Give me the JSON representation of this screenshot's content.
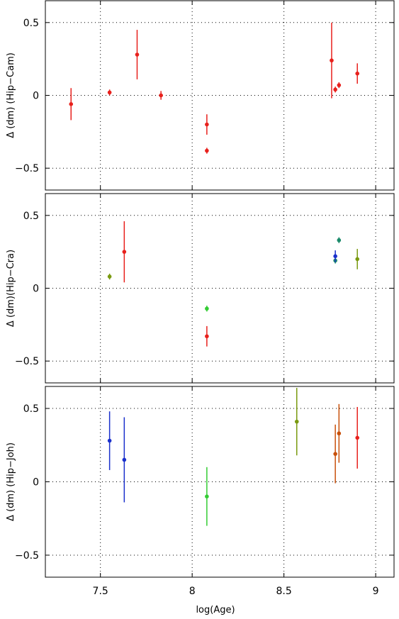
{
  "chart_data": [
    {
      "type": "scatter",
      "ylabel": "Δ (dm) (Hip−Cam)",
      "xlim": [
        7.2,
        9.1
      ],
      "ylim": [
        -0.65,
        0.65
      ],
      "grid": true,
      "xticks": [
        7.5,
        8,
        8.5,
        9
      ],
      "xtick_labels": [],
      "yticks": [
        0.5,
        0,
        -0.5
      ],
      "ytick_labels": [
        "0.5",
        "0",
        "−0.5"
      ],
      "points": [
        {
          "x": 7.34,
          "y": -0.06,
          "err": 0.11,
          "color": "#e8201c"
        },
        {
          "x": 7.55,
          "y": 0.02,
          "err": 0.02,
          "color": "#e8201c"
        },
        {
          "x": 7.7,
          "y": 0.28,
          "err": 0.17,
          "color": "#e8201c"
        },
        {
          "x": 7.83,
          "y": 0.0,
          "err": 0.03,
          "color": "#e8201c"
        },
        {
          "x": 8.08,
          "y": -0.2,
          "err": 0.07,
          "color": "#e8201c"
        },
        {
          "x": 8.08,
          "y": -0.38,
          "err": 0.02,
          "color": "#e8201c"
        },
        {
          "x": 8.76,
          "y": 0.24,
          "err": 0.26,
          "color": "#e8201c"
        },
        {
          "x": 8.78,
          "y": 0.04,
          "err": 0.02,
          "color": "#e8201c"
        },
        {
          "x": 8.8,
          "y": 0.07,
          "err": 0.02,
          "color": "#e8201c"
        },
        {
          "x": 8.9,
          "y": 0.15,
          "err": 0.07,
          "color": "#e8201c"
        }
      ]
    },
    {
      "type": "scatter",
      "ylabel": "Δ (dm)(Hip−Cra)",
      "xlim": [
        7.2,
        9.1
      ],
      "ylim": [
        -0.65,
        0.65
      ],
      "grid": true,
      "xticks": [
        7.5,
        8,
        8.5,
        9
      ],
      "xtick_labels": [],
      "yticks": [
        0.5,
        0,
        -0.5
      ],
      "ytick_labels": [
        "0.5",
        "0",
        "−0.5"
      ],
      "points": [
        {
          "x": 7.55,
          "y": 0.08,
          "err": 0.02,
          "color": "#7a9a10"
        },
        {
          "x": 7.63,
          "y": 0.25,
          "err": 0.21,
          "color": "#e8201c"
        },
        {
          "x": 8.08,
          "y": -0.14,
          "err": 0.02,
          "color": "#33cc33"
        },
        {
          "x": 8.08,
          "y": -0.33,
          "err": 0.07,
          "color": "#e8201c"
        },
        {
          "x": 8.78,
          "y": 0.19,
          "err": 0.02,
          "color": "#1a8a6a"
        },
        {
          "x": 8.78,
          "y": 0.22,
          "err": 0.04,
          "color": "#1a30cc"
        },
        {
          "x": 8.8,
          "y": 0.33,
          "err": 0.02,
          "color": "#1a8a6a"
        },
        {
          "x": 8.9,
          "y": 0.2,
          "err": 0.07,
          "color": "#7a9a10"
        }
      ]
    },
    {
      "type": "scatter",
      "xlabel": "log(Age)",
      "ylabel": "Δ (dm) (Hip−Joh)",
      "xlim": [
        7.2,
        9.1
      ],
      "ylim": [
        -0.65,
        0.65
      ],
      "grid": true,
      "xticks": [
        7.5,
        8,
        8.5,
        9
      ],
      "xtick_labels": [
        "7.5",
        "8",
        "8.5",
        "9"
      ],
      "yticks": [
        0.5,
        0,
        -0.5
      ],
      "ytick_labels": [
        "0.5",
        "0",
        "−0.5"
      ],
      "points": [
        {
          "x": 7.55,
          "y": 0.28,
          "err": 0.2,
          "color": "#1a30cc"
        },
        {
          "x": 7.63,
          "y": 0.15,
          "err": 0.29,
          "color": "#1a30cc"
        },
        {
          "x": 8.08,
          "y": -0.1,
          "err": 0.2,
          "color": "#33cc33"
        },
        {
          "x": 8.57,
          "y": 0.41,
          "err": 0.23,
          "color": "#7a9a10"
        },
        {
          "x": 8.78,
          "y": 0.19,
          "err": 0.2,
          "color": "#c8500a"
        },
        {
          "x": 8.8,
          "y": 0.33,
          "err": 0.2,
          "color": "#c8500a"
        },
        {
          "x": 8.9,
          "y": 0.3,
          "err": 0.21,
          "color": "#e8201c"
        }
      ]
    }
  ]
}
